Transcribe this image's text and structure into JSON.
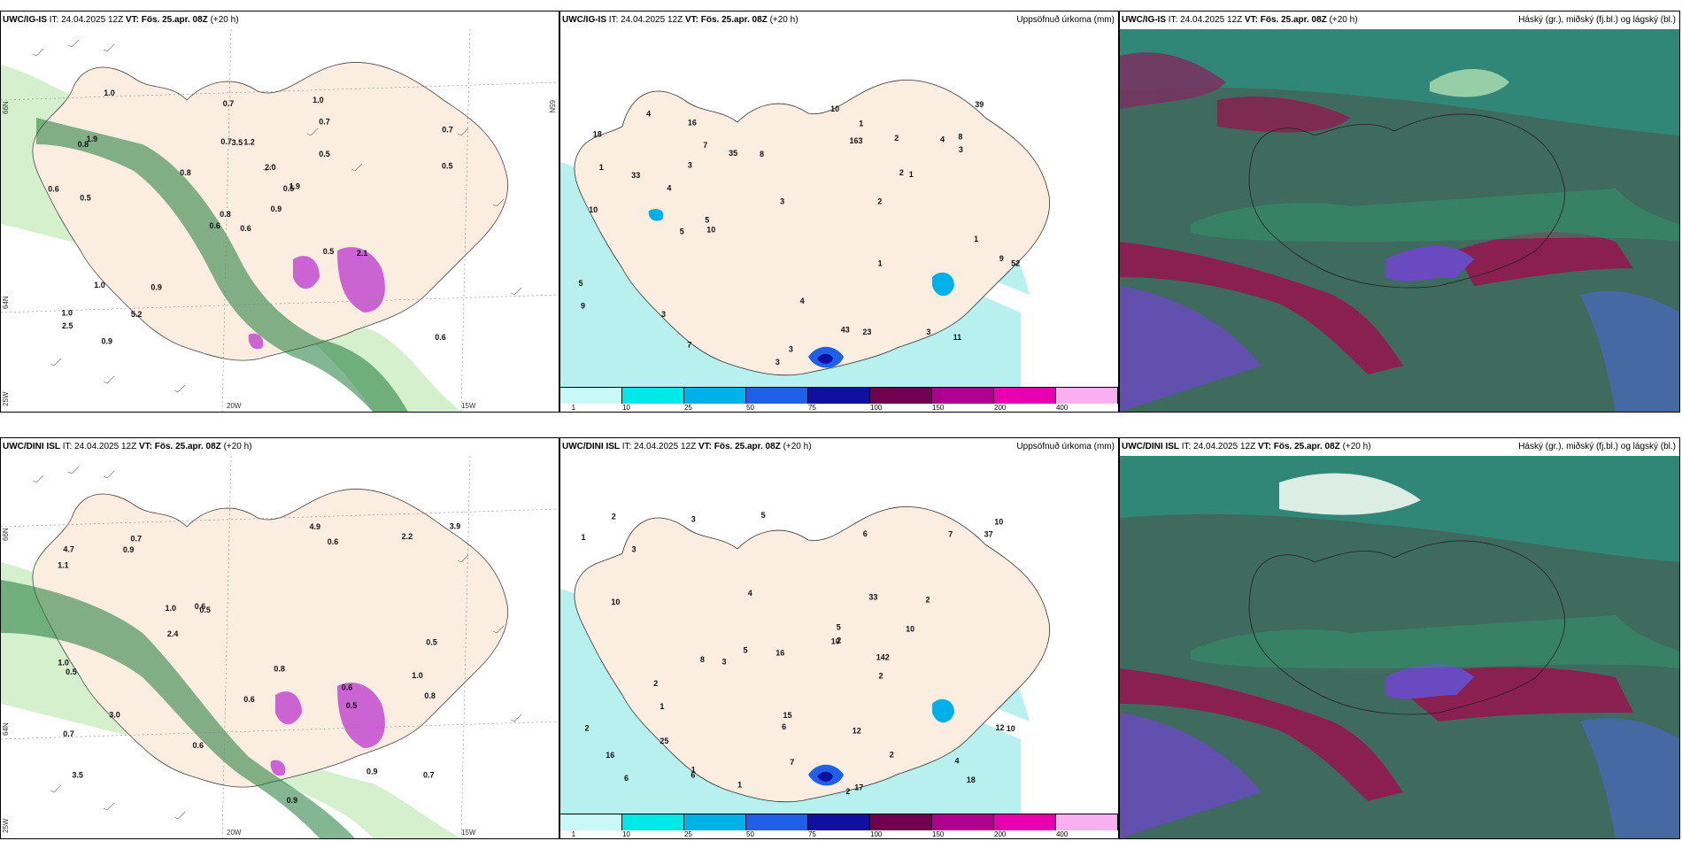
{
  "row1": {
    "p1": {
      "model": "UWC/IG-IS",
      "it": "IT: 24.04.2025 12Z",
      "vt": "VT: Fös. 25.apr. 08Z",
      "lead": "(+20 h)"
    },
    "p2": {
      "model": "UWC/IG-IS",
      "it": "IT: 24.04.2025 12Z",
      "vt": "VT: Fös. 25.apr. 08Z",
      "lead": "(+20 h)",
      "right": "Uppsöfnuð úrkoma (mm)"
    },
    "p3": {
      "model": "UWC/IG-IS",
      "it": "IT: 24.04.2025 12Z",
      "vt": "VT: Fös. 25.apr. 08Z",
      "lead": "(+20 h)",
      "right": "Háský (gr.), miðský (fj.bl.) og lágský (bl.)"
    }
  },
  "row2": {
    "p1": {
      "model": "UWC/DINI ISL",
      "it": "IT: 24.04.2025 12Z",
      "vt": "VT: Fös. 25.apr. 08Z",
      "lead": "(+20 h)"
    },
    "p2": {
      "model": "UWC/DINI ISL",
      "it": "IT: 24.04.2025 12Z",
      "vt": "VT: Fös. 25.apr. 08Z",
      "lead": "(+20 h)",
      "right": "Uppsöfnuð úrkoma (mm)"
    },
    "p3": {
      "model": "UWC/DINI ISL",
      "it": "IT: 24.04.2025 12Z",
      "vt": "VT: Fös. 25.apr. 08Z",
      "lead": "(+20 h)",
      "right": "Háský (gr.), miðský (fj.bl.) og lágský (bl.)"
    }
  },
  "axes": {
    "w20": "20W",
    "w25": "25W",
    "w15": "15W",
    "n66": "66N",
    "n65": "65N",
    "n64": "64N"
  },
  "legend": {
    "ticks": [
      "1",
      "10",
      "25",
      "50",
      "75",
      "100",
      "150",
      "200",
      "400"
    ],
    "colors": [
      "#c8f8f8",
      "#00e8e8",
      "#00b0e8",
      "#2060e8",
      "#1010a0",
      "#700050",
      "#b00090",
      "#e800b0",
      "#f8b0f0"
    ]
  },
  "precip_labels_top": [
    "1",
    "3",
    "2",
    "3",
    "4",
    "3",
    "1",
    "10",
    "8",
    "52",
    "9",
    "7",
    "2",
    "3",
    "10",
    "7",
    "5",
    "8",
    "11",
    "43",
    "3",
    "1",
    "3",
    "4",
    "2",
    "4",
    "3",
    "1",
    "4",
    "5",
    "5",
    "23",
    "39",
    "33",
    "18",
    "16",
    "35",
    "163",
    "10",
    "9",
    "1"
  ],
  "precip_labels_bottom": [
    "1",
    "2",
    "1",
    "2",
    "3",
    "3",
    "8",
    "18",
    "5",
    "4",
    "7",
    "7",
    "5",
    "6",
    "6",
    "10",
    "10",
    "6",
    "3",
    "1",
    "12",
    "10",
    "5",
    "6",
    "2",
    "2",
    "2",
    "1",
    "2",
    "2",
    "16",
    "17",
    "15",
    "37",
    "25",
    "142",
    "12",
    "16",
    "33",
    "4",
    "2",
    "10",
    "10"
  ],
  "wind_labels_top": [
    "0.6",
    "0.8",
    "0.8",
    "1.0",
    "0.5",
    "0.9",
    "1.0",
    "1.2",
    "0.7",
    "0.9",
    "1.0",
    "0.6",
    "0.5",
    "0.7",
    "0.6",
    "0.5",
    "0.9",
    "0.7",
    "2.0",
    "1.0",
    "0.8",
    "2.5",
    "5.2",
    "3.5",
    "1.9",
    "2.1",
    "1.9",
    "0.7",
    "0.6",
    "0.5",
    "0.5"
  ],
  "wind_labels_bottom": [
    "0.6",
    "1.0",
    "3.5",
    "0.7",
    "0.5",
    "0.9",
    "0.7",
    "0.6",
    "1.0",
    "0.9",
    "1.1",
    "1.0",
    "4.7",
    "0.7",
    "0.6",
    "0.5",
    "0.6",
    "0.8",
    "0.6",
    "3.0",
    "3.9",
    "2.2",
    "2.4",
    "0.8",
    "4.9",
    "0.9",
    "0.5",
    "0.5"
  ]
}
